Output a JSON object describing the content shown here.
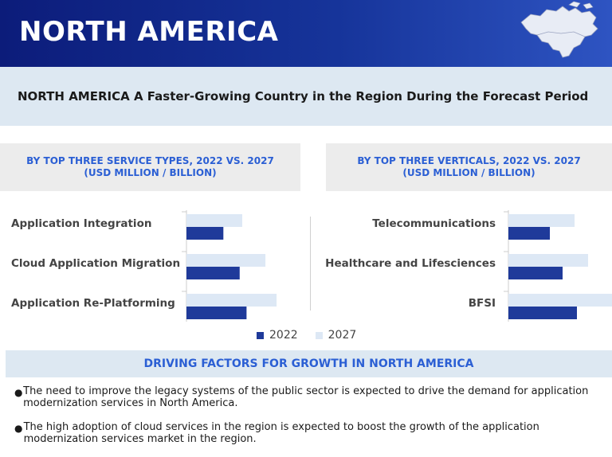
{
  "header": {
    "title": "NORTH AMERICA",
    "map_icon": "north-america-map-icon"
  },
  "subtitle": "NORTH AMERICA A Faster-Growing Country in the Region During the Forecast Period",
  "colors": {
    "series_2022": "#1f3a9a",
    "series_2027": "#dde8f5",
    "accent": "#2b5fd4",
    "header": "#0c1c7a"
  },
  "chart_data": [
    {
      "type": "bar",
      "orientation": "horizontal",
      "title": "BY TOP THREE SERVICE TYPES, 2022 VS. 2027 (USD MILLION / BILLION)",
      "categories": [
        "Application Integration",
        "Cloud Application Migration",
        "Application Re-Platforming"
      ],
      "series": [
        {
          "name": "2022",
          "values": [
            43,
            62,
            70
          ]
        },
        {
          "name": "2027",
          "values": [
            65,
            92,
            105
          ]
        }
      ],
      "xlim": [
        0,
        130
      ]
    },
    {
      "type": "bar",
      "orientation": "horizontal",
      "title": "BY TOP THREE VERTICALS, 2022 VS. 2027 (USD MILLION / BILLION)",
      "categories": [
        "Telecommunications",
        "Healthcare and Lifesciences",
        "BFSI"
      ],
      "series": [
        {
          "name": "2022",
          "values": [
            52,
            68,
            86
          ]
        },
        {
          "name": "2027",
          "values": [
            83,
            100,
            130
          ]
        }
      ],
      "xlim": [
        0,
        130
      ]
    }
  ],
  "legend": [
    "2022",
    "2027"
  ],
  "drivers": {
    "title": "DRIVING FACTORS FOR GROWTH IN NORTH AMERICA",
    "bullets": [
      "The need to improve the legacy systems of the public sector is expected to drive the demand for application modernization services in North America.",
      "The high adoption of cloud services in the region is expected to boost the growth of the application modernization services market in the region."
    ]
  }
}
